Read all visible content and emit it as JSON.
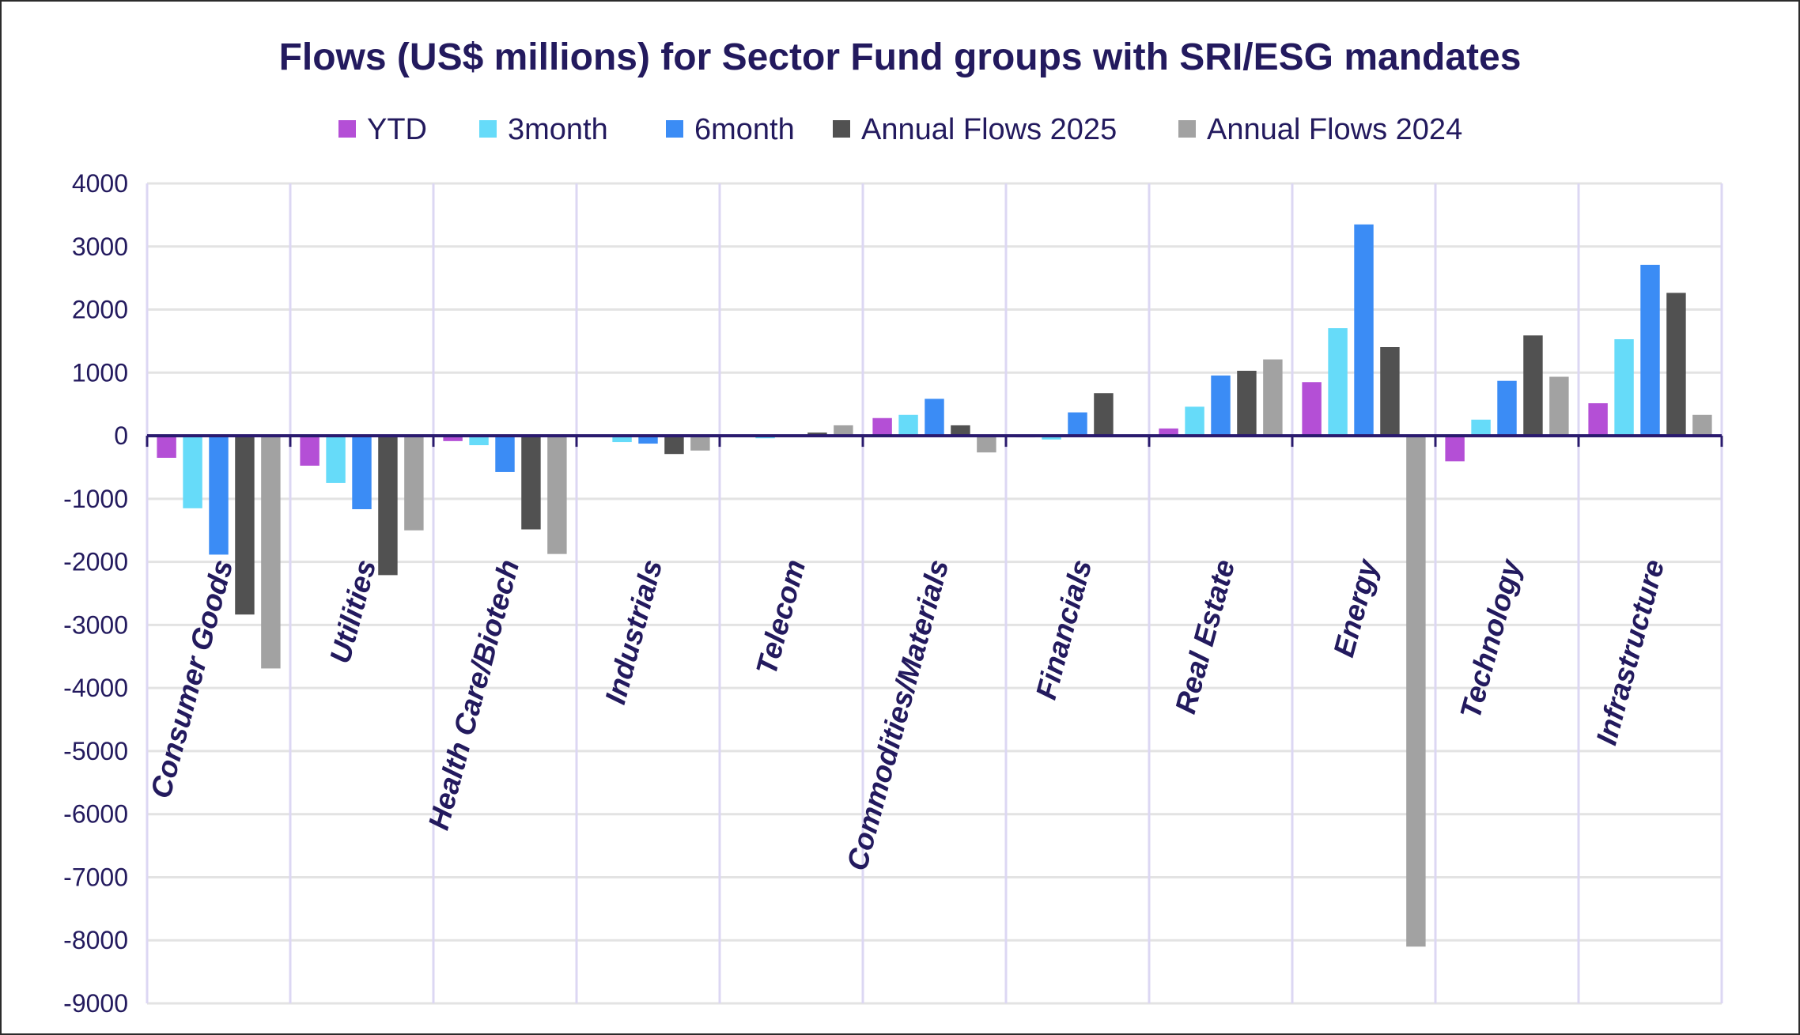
{
  "chart_data": {
    "type": "bar",
    "title": "Flows (US$ millions) for Sector Fund groups with SRI/ESG mandates",
    "xlabel": "",
    "ylabel": "",
    "ylim": [
      -9000,
      4000
    ],
    "yticks": [
      4000,
      3000,
      2000,
      1000,
      0,
      -1000,
      -2000,
      -3000,
      -4000,
      -5000,
      -6000,
      -7000,
      -8000,
      -9000
    ],
    "grid": true,
    "legend_position": "top",
    "categories": [
      "Consumer Goods",
      "Utilities",
      "Health Care/Biotech",
      "Industrials",
      "Telecom",
      "Commodities/Materials",
      "Financials",
      "Real Estate",
      "Energy",
      "Technology",
      "Infrastructure"
    ],
    "series": [
      {
        "name": "YTD",
        "color": "#b44fd6",
        "values": [
          -350,
          -475,
          -85,
          -20,
          0,
          280,
          -25,
          115,
          850,
          -405,
          515
        ]
      },
      {
        "name": "3month",
        "color": "#66dbf9",
        "values": [
          -1150,
          -750,
          -150,
          -100,
          -40,
          330,
          -60,
          460,
          1705,
          255,
          1530
        ]
      },
      {
        "name": "6month",
        "color": "#3b8cf5",
        "values": [
          -1885,
          -1165,
          -575,
          -125,
          0,
          585,
          370,
          955,
          3350,
          870,
          2710
        ]
      },
      {
        "name": "Annual Flows 2025",
        "color": "#515151",
        "values": [
          -2835,
          -2210,
          -1485,
          -290,
          50,
          165,
          675,
          1030,
          1405,
          1590,
          2265
        ]
      },
      {
        "name": "Annual Flows 2024",
        "color": "#a2a2a2",
        "values": [
          -3690,
          -1500,
          -1875,
          -235,
          165,
          -265,
          0,
          1210,
          -8100,
          935,
          330
        ]
      }
    ]
  }
}
